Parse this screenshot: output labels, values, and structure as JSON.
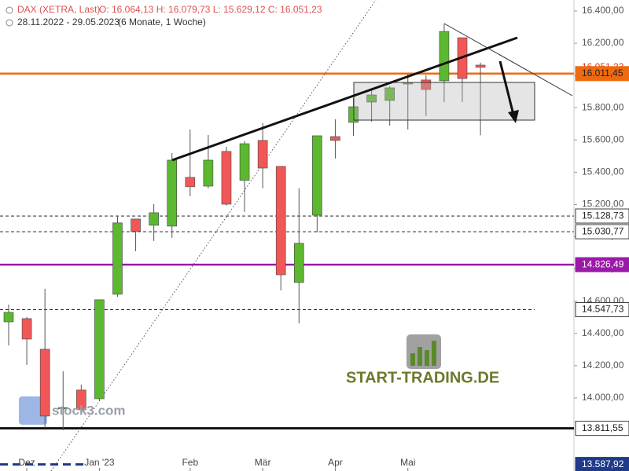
{
  "chart_data": {
    "type": "candlestick",
    "title": "DAX (XETRA, Last)",
    "quote": "O: 16.064,13  H: 16.079,73  L: 15.629,12  C: 16.051,23",
    "subtitle": "28.11.2022 - 29.05.2023",
    "period": "(6 Monate, 1 Woche)",
    "categories": [
      null,
      "Dez",
      null,
      null,
      null,
      "Jan '23",
      null,
      null,
      null,
      null,
      "Feb",
      null,
      null,
      null,
      "Mär",
      null,
      null,
      null,
      "Apr",
      null,
      null,
      null,
      "Mai",
      null,
      null,
      null,
      null
    ],
    "open": [
      14472,
      14492,
      14302,
      13937,
      14049,
      13995,
      14643,
      15110,
      15071,
      15066,
      15368,
      15314,
      15529,
      15349,
      15597,
      15436,
      14716,
      15134,
      15621,
      15709,
      15835,
      15845,
      15947,
      15972,
      15967,
      16234,
      16064.13
    ],
    "high": [
      14579,
      14502,
      14677,
      14166,
      14083,
      14609,
      15125,
      15110,
      15203,
      15519,
      15665,
      15631,
      15558,
      15592,
      15704,
      15436,
      15300,
      15626,
      15728,
      15860,
      15908,
      15933,
      16011,
      16001,
      16322,
      16234,
      16079.73
    ],
    "low": [
      14326,
      14205,
      13815,
      13800,
      13912,
      13985,
      14628,
      14910,
      14974,
      14993,
      15251,
      15300,
      15193,
      15154,
      15300,
      14667,
      14463,
      15027,
      15485,
      15626,
      15714,
      15689,
      15665,
      15748,
      15835,
      15835,
      15629.12
    ],
    "close": [
      14531,
      14365,
      13888,
      13940,
      13927,
      14609,
      15086,
      15032,
      15149,
      15475,
      15310,
      15475,
      15202,
      15577,
      15426,
      14764,
      14959,
      15626,
      15597,
      15806,
      15879,
      15923,
      15957,
      15913,
      16273,
      15981,
      16051.23
    ],
    "up_color": "#5cb82f",
    "down_color": "#f25757",
    "ylim": [
      13547,
      16468
    ],
    "yticks": [
      {
        "value": 14000,
        "label": "14.000,00"
      },
      {
        "value": 14200,
        "label": "14.200,00"
      },
      {
        "value": 14400,
        "label": "14.400,00"
      },
      {
        "value": 14600,
        "label": "14.600,00"
      },
      {
        "value": 14800,
        "label": "14.800,00"
      },
      {
        "value": 15000,
        "label": "15.000,00"
      },
      {
        "value": 15200,
        "label": "15.200,00"
      },
      {
        "value": 15400,
        "label": "15.400,00"
      },
      {
        "value": 15600,
        "label": "15.600,00"
      },
      {
        "value": 15800,
        "label": "15.800,00"
      },
      {
        "value": 16000,
        "label": "16.000,00"
      },
      {
        "value": 16200,
        "label": "16.200,00"
      },
      {
        "value": 16400,
        "label": "16.400,00"
      }
    ],
    "grid": false,
    "last_price": {
      "value": 16051.23,
      "label": "16.051,23",
      "color": "#e03030"
    },
    "levels": [
      {
        "value": 16011.45,
        "label": "16.011,45",
        "color": "#ee6a10",
        "style": "solid"
      },
      {
        "value": 15128.73,
        "label": "15.128,73",
        "color": "#222222",
        "style": "dashed"
      },
      {
        "value": 15030.77,
        "label": "15.030,77",
        "color": "#222222",
        "style": "dashed"
      },
      {
        "value": 14826.49,
        "label": "14.826,49",
        "color": "#9b19a8",
        "style": "solid"
      },
      {
        "value": 14547.73,
        "label": "14.547,73",
        "color": "#222222",
        "style": "dashed"
      },
      {
        "value": 13811.55,
        "label": "13.811,55",
        "color": "#111111",
        "style": "solid"
      },
      {
        "value": 13587.92,
        "label": "13.587,92",
        "color": "#1f3a8a",
        "style": "dashed"
      }
    ],
    "watermarks": [
      "START-TRADING.DE",
      "stock3.com"
    ]
  }
}
